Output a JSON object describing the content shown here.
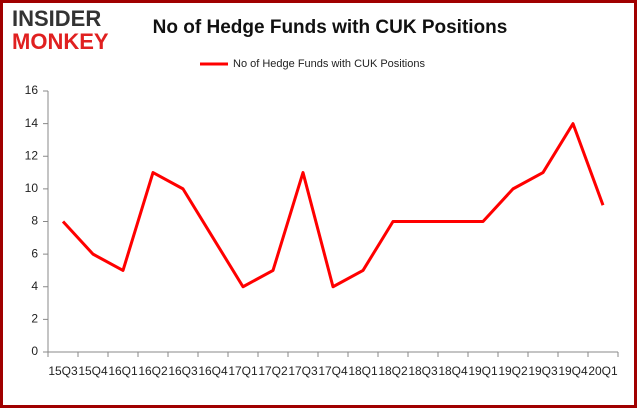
{
  "logo": {
    "line1": "INSIDER",
    "line2": "MONKEY"
  },
  "chart_data": {
    "type": "line",
    "title": "No of Hedge Funds with CUK Positions",
    "categories": [
      "15Q3",
      "15Q4",
      "16Q1",
      "16Q2",
      "16Q3",
      "16Q4",
      "17Q1",
      "17Q2",
      "17Q3",
      "17Q4",
      "18Q1",
      "18Q2",
      "18Q3",
      "18Q4",
      "19Q1",
      "19Q2",
      "19Q3",
      "19Q4",
      "20Q1"
    ],
    "series": [
      {
        "name": "No of Hedge Funds with CUK Positions",
        "color": "#ff0000",
        "values": [
          8,
          6,
          5,
          11,
          10,
          7,
          4,
          5,
          11,
          4,
          5,
          8,
          8,
          8,
          8,
          10,
          11,
          14,
          9
        ]
      }
    ],
    "ylim": [
      0,
      16
    ],
    "yticks": [
      0,
      2,
      4,
      6,
      8,
      10,
      12,
      14,
      16
    ],
    "grid": false,
    "legend": "top"
  }
}
